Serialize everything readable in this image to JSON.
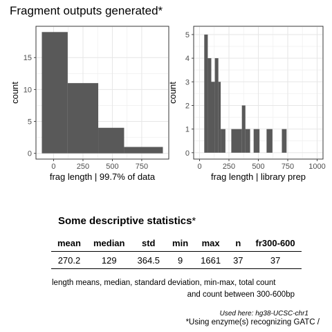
{
  "page_title": "Fragment outputs generated*",
  "chart_data": [
    {
      "type": "bar",
      "subtype": "histogram",
      "bins": [
        {
          "from": -100,
          "to": 120,
          "count": 19
        },
        {
          "from": 120,
          "to": 380,
          "count": 11
        },
        {
          "from": 380,
          "to": 600,
          "count": 4
        },
        {
          "from": 600,
          "to": 930,
          "count": 1
        }
      ],
      "xlabel": "frag length | 99.7% of data",
      "ylabel": "count",
      "xlim": [
        -150,
        980
      ],
      "ylim": [
        -0.9,
        19.9
      ],
      "xticks": [
        0,
        250,
        500,
        750
      ],
      "yticks": [
        0,
        5,
        10,
        15
      ],
      "grid": true,
      "bar_color": "#595959"
    },
    {
      "type": "bar",
      "subtype": "histogram",
      "bins": [
        {
          "from": 40,
          "to": 70,
          "count": 5
        },
        {
          "from": 70,
          "to": 100,
          "count": 4
        },
        {
          "from": 100,
          "to": 130,
          "count": 3
        },
        {
          "from": 130,
          "to": 160,
          "count": 4
        },
        {
          "from": 160,
          "to": 180,
          "count": 3
        },
        {
          "from": 180,
          "to": 220,
          "count": 1
        },
        {
          "from": 270,
          "to": 360,
          "count": 1
        },
        {
          "from": 360,
          "to": 390,
          "count": 2
        },
        {
          "from": 390,
          "to": 430,
          "count": 1
        },
        {
          "from": 460,
          "to": 510,
          "count": 1
        },
        {
          "from": 570,
          "to": 620,
          "count": 1
        },
        {
          "from": 700,
          "to": 740,
          "count": 1
        }
      ],
      "xlabel": "frag length | library prep",
      "ylabel": "count",
      "xlim": [
        -50,
        1050
      ],
      "ylim": [
        -0.27,
        5.35
      ],
      "xticks": [
        0,
        250,
        500,
        750,
        1000
      ],
      "yticks": [
        0,
        1,
        2,
        3,
        4,
        5
      ],
      "grid": true,
      "bar_color": "#595959"
    }
  ],
  "stats": {
    "title_bold": "Some descriptive statistics",
    "title_star": "*",
    "headers": [
      "mean",
      "median",
      "std",
      "min",
      "max",
      "n",
      "fr300-600"
    ],
    "values": [
      "270.2",
      "129",
      "364.5",
      "9",
      "1661",
      "37",
      "37"
    ]
  },
  "notes": {
    "line1": "length means, median, standard deviation, min-max, total count",
    "line2": "and count between 300-600bp",
    "source": "Used here: hg38-UCSC-chr1",
    "enzyme": "*Using enzyme(s) recognizing GATC /"
  }
}
